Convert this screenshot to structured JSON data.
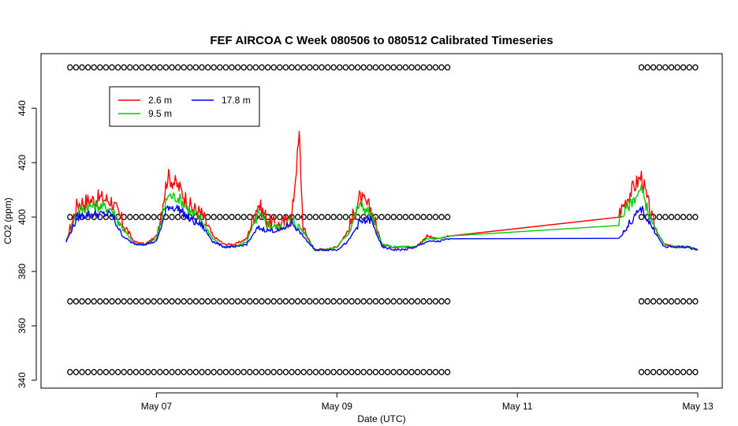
{
  "chart_data": {
    "type": "line",
    "title": "FEF AIRCOA C  Week 080506 to 080512  Calibrated Timeseries",
    "xlabel": "Date (UTC)",
    "ylabel": "CO2 (ppm)",
    "x_unit": "date (UTC, 2008)",
    "xlim": [
      "2008-05-06 00:00",
      "2008-05-13 00:00"
    ],
    "ylim": [
      340,
      456
    ],
    "x_ticks": [
      {
        "x": "2008-05-07 00:00",
        "label": "May 07"
      },
      {
        "x": "2008-05-09 00:00",
        "label": "May 09"
      },
      {
        "x": "2008-05-11 00:00",
        "label": "May 11"
      },
      {
        "x": "2008-05-13 00:00",
        "label": "May 13"
      }
    ],
    "y_ticks": [
      340,
      360,
      380,
      400,
      420,
      440
    ],
    "grid": false,
    "legend": {
      "placement": "top-left",
      "entries": [
        {
          "name": "2.6 m",
          "color": "#ff0000"
        },
        {
          "name": "9.5 m",
          "color": "#00cc00"
        },
        {
          "name": "17.8 m",
          "color": "#0000ff"
        }
      ]
    },
    "series": [
      {
        "name": "2.6 m",
        "color": "#ff0000",
        "x": [
          "2008-05-06 00:00",
          "2008-05-06 03:00",
          "2008-05-06 06:00",
          "2008-05-06 09:00",
          "2008-05-06 12:00",
          "2008-05-06 15:00",
          "2008-05-06 18:00",
          "2008-05-06 21:00",
          "2008-05-07 00:00",
          "2008-05-07 03:00",
          "2008-05-07 06:00",
          "2008-05-07 09:00",
          "2008-05-07 12:00",
          "2008-05-07 15:00",
          "2008-05-07 18:00",
          "2008-05-07 21:00",
          "2008-05-08 00:00",
          "2008-05-08 03:00",
          "2008-05-08 06:00",
          "2008-05-08 09:00",
          "2008-05-08 12:00",
          "2008-05-08 14:00",
          "2008-05-08 15:00",
          "2008-05-08 18:00",
          "2008-05-08 21:00",
          "2008-05-09 00:00",
          "2008-05-09 03:00",
          "2008-05-09 06:00",
          "2008-05-09 09:00",
          "2008-05-09 12:00",
          "2008-05-09 15:00",
          "2008-05-09 18:00",
          "2008-05-09 21:00",
          "2008-05-10 00:00",
          "2008-05-10 03:00",
          "2008-05-10 06:00",
          "2008-05-12 03:00",
          "2008-05-12 06:00",
          "2008-05-12 09:00",
          "2008-05-12 12:00",
          "2008-05-12 15:00",
          "2008-05-12 18:00",
          "2008-05-12 21:00",
          "2008-05-13 00:00"
        ],
        "y": [
          391,
          405,
          406,
          407,
          406,
          398,
          391,
          390,
          393,
          415,
          411,
          404,
          401,
          393,
          390,
          390,
          392,
          405,
          398,
          397,
          400,
          430,
          396,
          388,
          388,
          389,
          395,
          407,
          403,
          390,
          389,
          389,
          389,
          393,
          392,
          393,
          401,
          409,
          415,
          398,
          390,
          389,
          389,
          388
        ]
      },
      {
        "name": "9.5 m",
        "color": "#00cc00",
        "x": [
          "2008-05-06 00:00",
          "2008-05-06 03:00",
          "2008-05-06 06:00",
          "2008-05-06 09:00",
          "2008-05-06 12:00",
          "2008-05-06 15:00",
          "2008-05-06 18:00",
          "2008-05-06 21:00",
          "2008-05-07 00:00",
          "2008-05-07 03:00",
          "2008-05-07 06:00",
          "2008-05-07 09:00",
          "2008-05-07 12:00",
          "2008-05-07 15:00",
          "2008-05-07 18:00",
          "2008-05-07 21:00",
          "2008-05-08 00:00",
          "2008-05-08 03:00",
          "2008-05-08 06:00",
          "2008-05-08 09:00",
          "2008-05-08 12:00",
          "2008-05-08 15:00",
          "2008-05-08 18:00",
          "2008-05-08 21:00",
          "2008-05-09 00:00",
          "2008-05-09 03:00",
          "2008-05-09 06:00",
          "2008-05-09 09:00",
          "2008-05-09 12:00",
          "2008-05-09 15:00",
          "2008-05-09 18:00",
          "2008-05-09 21:00",
          "2008-05-10 00:00",
          "2008-05-10 03:00",
          "2008-05-10 06:00",
          "2008-05-12 03:00",
          "2008-05-12 06:00",
          "2008-05-12 09:00",
          "2008-05-12 12:00",
          "2008-05-12 15:00",
          "2008-05-12 18:00",
          "2008-05-12 21:00",
          "2008-05-13 00:00"
        ],
        "y": [
          391,
          402,
          404,
          404,
          403,
          396,
          390,
          390,
          392,
          408,
          407,
          402,
          399,
          392,
          389,
          389,
          391,
          401,
          397,
          396,
          399,
          395,
          388,
          388,
          389,
          394,
          405,
          401,
          390,
          389,
          389,
          389,
          392,
          392,
          393,
          399,
          405,
          410,
          397,
          390,
          389,
          389,
          388
        ]
      },
      {
        "name": "17.8 m",
        "color": "#0000ff",
        "x": [
          "2008-05-06 00:00",
          "2008-05-06 03:00",
          "2008-05-06 06:00",
          "2008-05-06 09:00",
          "2008-05-06 12:00",
          "2008-05-06 15:00",
          "2008-05-06 18:00",
          "2008-05-06 21:00",
          "2008-05-07 00:00",
          "2008-05-07 03:00",
          "2008-05-07 06:00",
          "2008-05-07 09:00",
          "2008-05-07 12:00",
          "2008-05-07 15:00",
          "2008-05-07 18:00",
          "2008-05-07 21:00",
          "2008-05-08 00:00",
          "2008-05-08 03:00",
          "2008-05-08 06:00",
          "2008-05-08 09:00",
          "2008-05-08 12:00",
          "2008-05-08 15:00",
          "2008-05-08 18:00",
          "2008-05-08 21:00",
          "2008-05-09 00:00",
          "2008-05-09 03:00",
          "2008-05-09 06:00",
          "2008-05-09 09:00",
          "2008-05-09 12:00",
          "2008-05-09 15:00",
          "2008-05-09 18:00",
          "2008-05-09 21:00",
          "2008-05-10 00:00",
          "2008-05-10 03:00",
          "2008-05-10 06:00",
          "2008-05-12 03:00",
          "2008-05-12 06:00",
          "2008-05-12 09:00",
          "2008-05-12 12:00",
          "2008-05-12 15:00",
          "2008-05-12 18:00",
          "2008-05-12 21:00",
          "2008-05-13 00:00"
        ],
        "y": [
          391,
          400,
          401,
          401,
          401,
          393,
          390,
          390,
          391,
          404,
          403,
          399,
          397,
          391,
          389,
          389,
          390,
          396,
          395,
          395,
          398,
          393,
          388,
          388,
          388,
          391,
          398,
          399,
          389,
          388,
          388,
          389,
          391,
          391,
          392,
          392,
          398,
          403,
          396,
          389,
          389,
          389,
          388
        ]
      }
    ],
    "flag_markers": {
      "description": "status flags",
      "rows_y": [
        455,
        400,
        369,
        343
      ],
      "x_spans": [
        [
          "2008-05-06 01:00",
          "2008-05-10 06:00"
        ],
        [
          "2008-05-12 09:00",
          "2008-05-13 00:00"
        ]
      ]
    }
  }
}
